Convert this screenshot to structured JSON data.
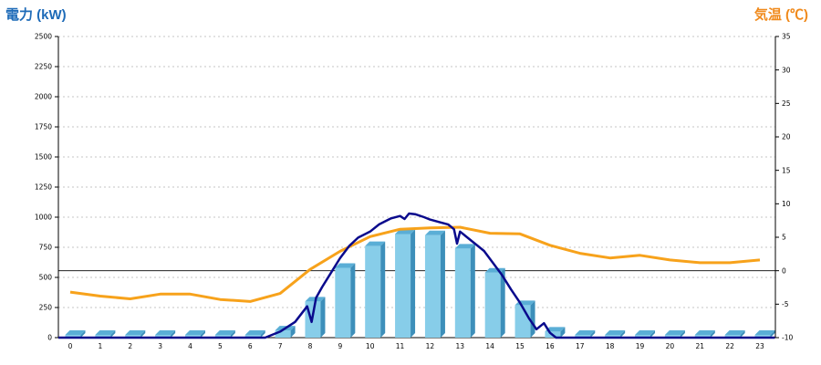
{
  "chart_data": {
    "type": "bar-line-combo",
    "left_axis_title": "電力 (kW)",
    "right_axis_title": "気温 (℃)",
    "y_left": {
      "min": 0,
      "max": 2500,
      "ticks": [
        0,
        250,
        500,
        750,
        1000,
        1250,
        1500,
        1750,
        2000,
        2250,
        2500
      ]
    },
    "y_right": {
      "min": -10,
      "max": 35,
      "ticks": [
        -10,
        -5,
        0,
        5,
        10,
        15,
        20,
        25,
        30,
        35
      ]
    },
    "x_labels": [
      "0",
      "1",
      "2",
      "3",
      "4",
      "5",
      "6",
      "7",
      "8",
      "9",
      "10",
      "11",
      "12",
      "13",
      "14",
      "15",
      "16",
      "17",
      "18",
      "19",
      "20",
      "21",
      "22",
      "23"
    ],
    "grid": "horizontal-dotted",
    "bar_color": "#87cde9",
    "power_line_color": "#0a0a8c",
    "temp_line_color": "#f7a21b",
    "bars": {
      "hours": [
        0,
        1,
        2,
        3,
        4,
        5,
        6,
        7,
        8,
        9,
        10,
        11,
        12,
        13,
        14,
        15,
        16,
        17,
        18,
        19,
        20,
        21,
        22,
        23
      ],
      "values": [
        0,
        0,
        0,
        0,
        0,
        0,
        0,
        60,
        300,
        580,
        760,
        860,
        850,
        740,
        540,
        270,
        50,
        0,
        0,
        0,
        0,
        0,
        0,
        0
      ]
    },
    "power_curve": {
      "x": [
        6.5,
        7,
        7.5,
        7.9,
        8.05,
        8.2,
        8.4,
        8.7,
        9,
        9.3,
        9.6,
        10,
        10.3,
        10.7,
        11,
        11.15,
        11.3,
        11.5,
        11.8,
        12,
        12.3,
        12.6,
        12.8,
        12.9,
        13,
        13.2,
        13.5,
        13.8,
        14.1,
        14.4,
        14.7,
        15,
        15.3,
        15.55,
        15.8,
        16,
        16.2,
        16.6,
        23.5
      ],
      "y": [
        0,
        50,
        130,
        260,
        130,
        330,
        420,
        540,
        660,
        760,
        830,
        880,
        940,
        990,
        1010,
        985,
        1030,
        1025,
        1000,
        980,
        960,
        940,
        900,
        780,
        880,
        840,
        780,
        720,
        620,
        520,
        400,
        290,
        160,
        70,
        120,
        40,
        0,
        0,
        0
      ]
    },
    "temperature": {
      "x": [
        0,
        1,
        2,
        3,
        4,
        5,
        6,
        7,
        8,
        9,
        10,
        11,
        12,
        13,
        14,
        15,
        16,
        17,
        18,
        19,
        20,
        21,
        22,
        23
      ],
      "y": [
        -3.2,
        -3.8,
        -4.2,
        -3.5,
        -3.5,
        -4.3,
        -4.6,
        -3.4,
        0.2,
        2.9,
        5.1,
        6.2,
        6.4,
        6.5,
        5.6,
        5.5,
        3.8,
        2.6,
        1.9,
        2.3,
        1.6,
        1.2,
        1.2,
        1.6
      ]
    },
    "reference_line_temp": 0
  }
}
